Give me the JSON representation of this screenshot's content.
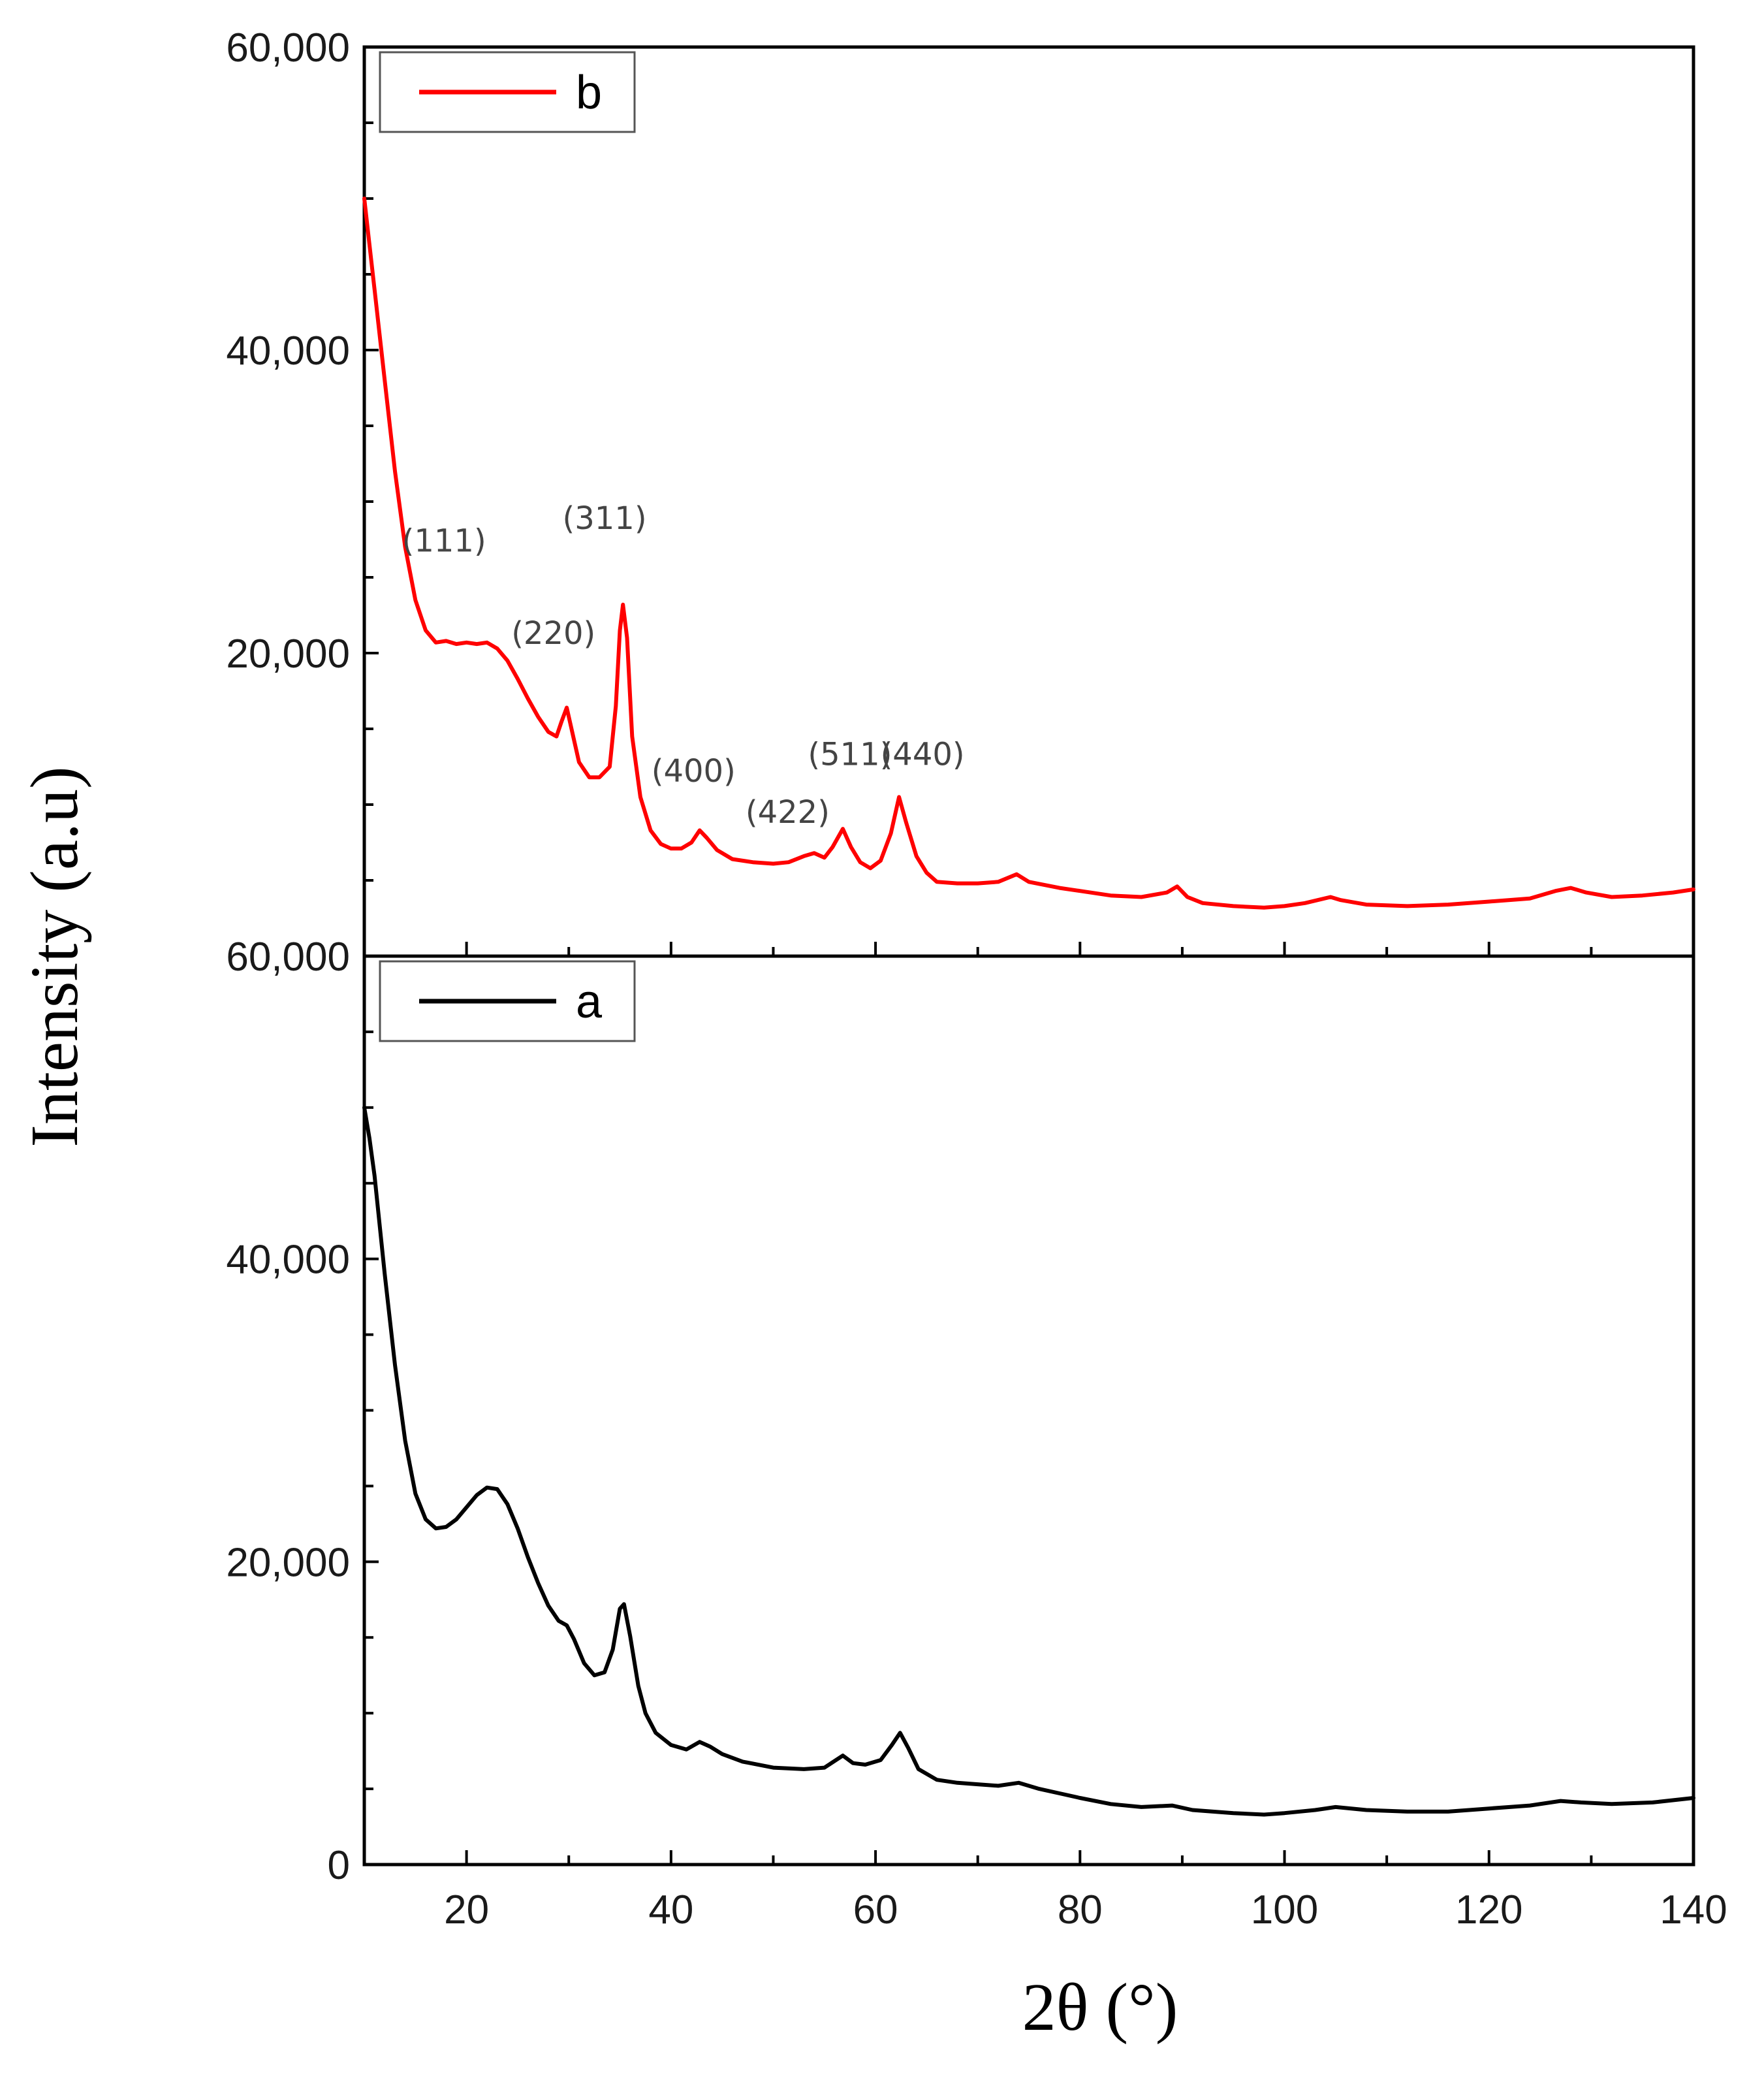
{
  "chart_data": {
    "type": "line",
    "xlabel": "2θ (°)",
    "ylabel": "Intensity (a.u)",
    "xlim": [
      10,
      140
    ],
    "x_ticks": [
      20,
      40,
      60,
      80,
      100,
      120,
      140
    ],
    "grid": false,
    "legend_position": "top-left",
    "panels": [
      {
        "id": "top",
        "ylim": [
          0,
          60000
        ],
        "y_tick_values": [
          20000,
          40000,
          60000
        ],
        "y_tick_labels": [
          "20,000",
          "40,000",
          "60,000"
        ],
        "series": [
          {
            "name": "b",
            "color": "#ff0000",
            "points": [
              [
                10,
                50000
              ],
              [
                10.5,
                47000
              ],
              [
                11,
                44000
              ],
              [
                12,
                38000
              ],
              [
                13,
                32000
              ],
              [
                14,
                27000
              ],
              [
                15,
                23500
              ],
              [
                16,
                21500
              ],
              [
                17,
                20700
              ],
              [
                18,
                20800
              ],
              [
                19,
                20600
              ],
              [
                20,
                20700
              ],
              [
                21,
                20600
              ],
              [
                22,
                20700
              ],
              [
                23,
                20300
              ],
              [
                24,
                19500
              ],
              [
                25,
                18300
              ],
              [
                26,
                17000
              ],
              [
                27,
                15800
              ],
              [
                28,
                14800
              ],
              [
                28.8,
                14500
              ],
              [
                29.3,
                15500
              ],
              [
                29.8,
                16400
              ],
              [
                30.4,
                14600
              ],
              [
                31,
                12800
              ],
              [
                32,
                11800
              ],
              [
                33,
                11800
              ],
              [
                34,
                12500
              ],
              [
                34.6,
                16500
              ],
              [
                35,
                21500
              ],
              [
                35.3,
                23200
              ],
              [
                35.7,
                21000
              ],
              [
                36.2,
                14500
              ],
              [
                37,
                10500
              ],
              [
                38,
                8300
              ],
              [
                39,
                7400
              ],
              [
                40,
                7100
              ],
              [
                41,
                7100
              ],
              [
                42,
                7500
              ],
              [
                42.8,
                8300
              ],
              [
                43.5,
                7800
              ],
              [
                44.5,
                7000
              ],
              [
                46,
                6400
              ],
              [
                48,
                6200
              ],
              [
                50,
                6100
              ],
              [
                51.5,
                6200
              ],
              [
                53,
                6600
              ],
              [
                54,
                6800
              ],
              [
                55,
                6500
              ],
              [
                55.8,
                7200
              ],
              [
                56.8,
                8400
              ],
              [
                57.6,
                7200
              ],
              [
                58.5,
                6200
              ],
              [
                59.5,
                5800
              ],
              [
                60.5,
                6300
              ],
              [
                61.5,
                8100
              ],
              [
                62.3,
                10500
              ],
              [
                63,
                8800
              ],
              [
                64,
                6600
              ],
              [
                65,
                5500
              ],
              [
                66,
                4900
              ],
              [
                68,
                4800
              ],
              [
                70,
                4800
              ],
              [
                72,
                4900
              ],
              [
                73.8,
                5400
              ],
              [
                75,
                4900
              ],
              [
                78,
                4500
              ],
              [
                80,
                4300
              ],
              [
                83,
                4000
              ],
              [
                86,
                3900
              ],
              [
                88.5,
                4200
              ],
              [
                89.5,
                4600
              ],
              [
                90.5,
                3900
              ],
              [
                92,
                3500
              ],
              [
                95,
                3300
              ],
              [
                98,
                3200
              ],
              [
                100,
                3300
              ],
              [
                102,
                3500
              ],
              [
                104.5,
                3900
              ],
              [
                105.5,
                3700
              ],
              [
                108,
                3400
              ],
              [
                112,
                3300
              ],
              [
                116,
                3400
              ],
              [
                120,
                3600
              ],
              [
                124,
                3800
              ],
              [
                126.5,
                4300
              ],
              [
                128,
                4500
              ],
              [
                129.5,
                4200
              ],
              [
                132,
                3900
              ],
              [
                135,
                4000
              ],
              [
                138,
                4200
              ],
              [
                140,
                4400
              ]
            ]
          }
        ],
        "annotations": [
          {
            "text": "(111)",
            "x": 17.8,
            "y": 26700
          },
          {
            "text": "(311)",
            "x": 33.5,
            "y": 28200
          },
          {
            "text": "(220)",
            "x": 28.5,
            "y": 20600
          },
          {
            "text": "(400)",
            "x": 42.2,
            "y": 11500
          },
          {
            "text": "(422)",
            "x": 51.4,
            "y": 8800
          },
          {
            "text": "(511)",
            "x": 57.5,
            "y": 12600
          },
          {
            "text": "(440)",
            "x": 64.6,
            "y": 12600
          }
        ]
      },
      {
        "id": "bottom",
        "ylim": [
          0,
          60000
        ],
        "y_tick_values": [
          0,
          20000,
          40000,
          60000
        ],
        "y_tick_labels": [
          "0",
          "20,000",
          "40,000",
          "60,000"
        ],
        "series": [
          {
            "name": "a",
            "color": "#000000",
            "points": [
              [
                10,
                50000
              ],
              [
                10.5,
                48000
              ],
              [
                11,
                45500
              ],
              [
                12,
                39000
              ],
              [
                13,
                33000
              ],
              [
                14,
                28000
              ],
              [
                15,
                24500
              ],
              [
                16,
                22800
              ],
              [
                17,
                22200
              ],
              [
                18,
                22300
              ],
              [
                19,
                22800
              ],
              [
                20,
                23600
              ],
              [
                21,
                24400
              ],
              [
                22,
                24900
              ],
              [
                23,
                24800
              ],
              [
                24,
                23800
              ],
              [
                25,
                22200
              ],
              [
                26,
                20300
              ],
              [
                27,
                18600
              ],
              [
                28,
                17100
              ],
              [
                29,
                16100
              ],
              [
                29.8,
                15800
              ],
              [
                30.5,
                14900
              ],
              [
                31.5,
                13300
              ],
              [
                32.5,
                12500
              ],
              [
                33.5,
                12700
              ],
              [
                34.3,
                14200
              ],
              [
                35,
                16900
              ],
              [
                35.4,
                17200
              ],
              [
                36,
                15100
              ],
              [
                36.8,
                11800
              ],
              [
                37.5,
                10000
              ],
              [
                38.5,
                8700
              ],
              [
                40,
                7900
              ],
              [
                41.5,
                7600
              ],
              [
                42.8,
                8100
              ],
              [
                43.8,
                7800
              ],
              [
                45,
                7300
              ],
              [
                47,
                6800
              ],
              [
                50,
                6400
              ],
              [
                53,
                6300
              ],
              [
                55,
                6400
              ],
              [
                56.8,
                7200
              ],
              [
                57.8,
                6700
              ],
              [
                59,
                6600
              ],
              [
                60.5,
                6900
              ],
              [
                61.6,
                7900
              ],
              [
                62.4,
                8700
              ],
              [
                63.2,
                7700
              ],
              [
                64.2,
                6300
              ],
              [
                66,
                5600
              ],
              [
                68,
                5400
              ],
              [
                70,
                5300
              ],
              [
                72,
                5200
              ],
              [
                74,
                5400
              ],
              [
                76,
                5000
              ],
              [
                78,
                4700
              ],
              [
                80,
                4400
              ],
              [
                83,
                4000
              ],
              [
                86,
                3800
              ],
              [
                89,
                3900
              ],
              [
                91,
                3600
              ],
              [
                95,
                3400
              ],
              [
                98,
                3300
              ],
              [
                100,
                3400
              ],
              [
                103,
                3600
              ],
              [
                105,
                3800
              ],
              [
                108,
                3600
              ],
              [
                112,
                3500
              ],
              [
                116,
                3500
              ],
              [
                120,
                3700
              ],
              [
                124,
                3900
              ],
              [
                127,
                4200
              ],
              [
                129,
                4100
              ],
              [
                132,
                4000
              ],
              [
                136,
                4100
              ],
              [
                140,
                4400
              ]
            ]
          }
        ],
        "annotations": []
      }
    ]
  }
}
